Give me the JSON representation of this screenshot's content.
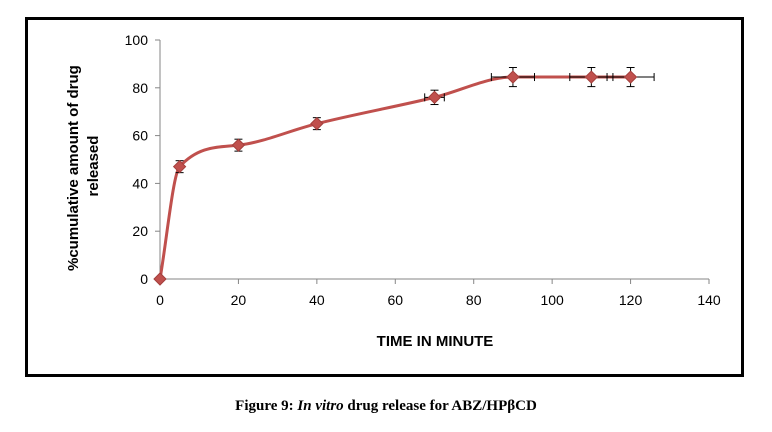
{
  "chart_data": {
    "type": "line",
    "xlabel": "TIME IN MINUTE",
    "ylabel_lines": [
      "%cumulative amount of drug",
      "released"
    ],
    "xlim": [
      0,
      140
    ],
    "ylim": [
      0,
      100
    ],
    "x_ticks": [
      "0",
      "20",
      "40",
      "60",
      "80",
      "100",
      "120",
      "140"
    ],
    "y_ticks": [
      "0",
      "20",
      "40",
      "60",
      "80",
      "100"
    ],
    "series": [
      {
        "color": "#c0504d",
        "marker": "diamond",
        "smooth": true,
        "points": [
          {
            "x": 0,
            "y": 0
          },
          {
            "x": 5,
            "y": 47
          },
          {
            "x": 20,
            "y": 56
          },
          {
            "x": 40,
            "y": 65
          },
          {
            "x": 70,
            "y": 76
          },
          {
            "x": 90,
            "y": 84.5
          },
          {
            "x": 110,
            "y": 84.5
          },
          {
            "x": 120,
            "y": 84.5
          }
        ]
      }
    ],
    "error_bars": [
      {
        "x": 5,
        "y": 47,
        "xerr": 0,
        "yerr": 2.5
      },
      {
        "x": 20,
        "y": 56,
        "xerr": 0,
        "yerr": 2.5
      },
      {
        "x": 40,
        "y": 65,
        "xerr": 0,
        "yerr": 2.5
      },
      {
        "x": 70,
        "y": 76,
        "xerr": 2.5,
        "yerr": 3
      },
      {
        "x": 90,
        "y": 84.5,
        "xerr": 5.5,
        "yerr": 4
      },
      {
        "x": 110,
        "y": 84.5,
        "xerr": 5.5,
        "yerr": 4
      },
      {
        "x": 120,
        "y": 84.5,
        "xerr": 6,
        "yerr": 4
      }
    ]
  },
  "caption": {
    "prefix": "Figure 9: ",
    "italic": "In vitro",
    "suffix": " drug release for ABZ/HPβCD"
  }
}
